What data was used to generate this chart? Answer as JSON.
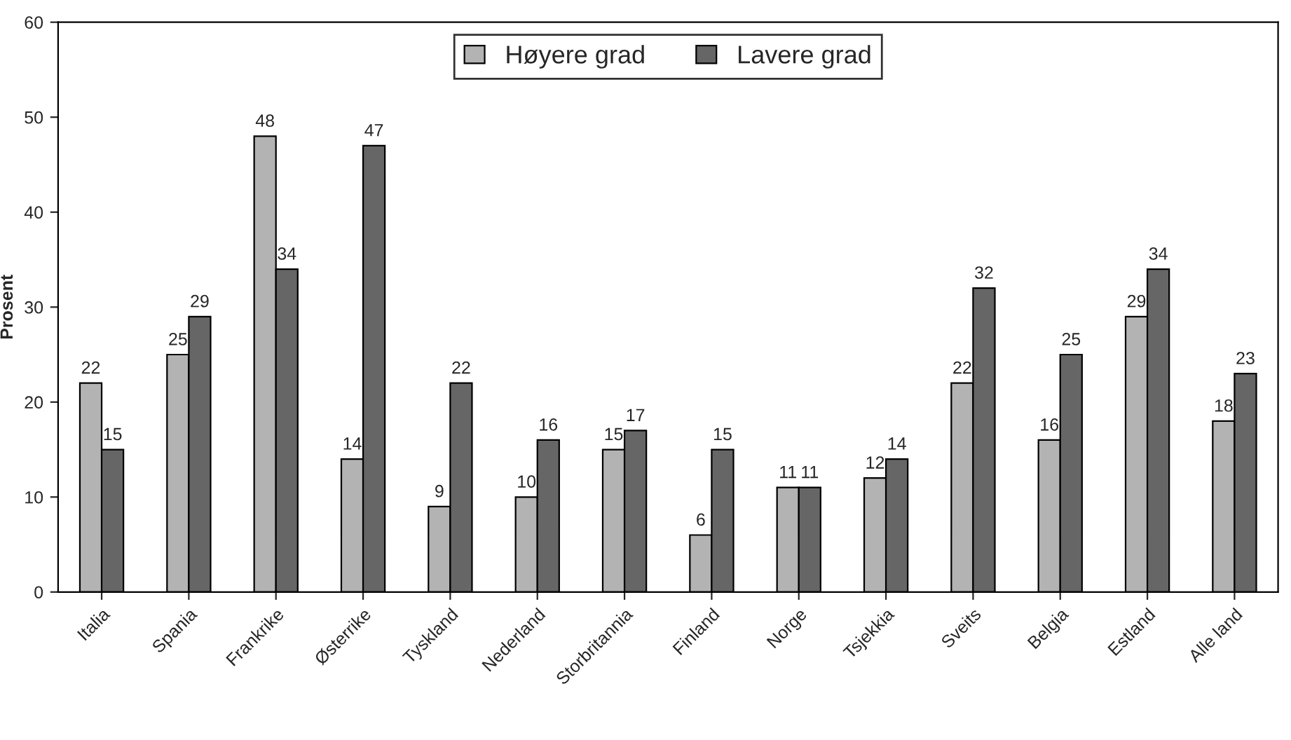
{
  "chart_data": {
    "type": "bar",
    "ylabel": "Prosent",
    "categories": [
      "Italia",
      "Spania",
      "Frankrike",
      "Østerrike",
      "Tyskland",
      "Nederland",
      "Storbritannia",
      "Finland",
      "Norge",
      "Tsjekkia",
      "Sveits",
      "Belgia",
      "Estland",
      "Alle land"
    ],
    "series": [
      {
        "name": "Høyere grad",
        "color": "#b3b3b3",
        "values": [
          22,
          25,
          48,
          14,
          9,
          10,
          15,
          6,
          11,
          12,
          22,
          16,
          29,
          18
        ]
      },
      {
        "name": "Lavere grad",
        "color": "#666666",
        "values": [
          15,
          29,
          34,
          47,
          22,
          16,
          17,
          15,
          11,
          14,
          32,
          25,
          34,
          23
        ]
      }
    ],
    "ylim": [
      0,
      60
    ],
    "yticks": [
      0,
      10,
      20,
      30,
      40,
      50,
      60
    ],
    "grid": false,
    "legend": "top",
    "data_labels": true
  }
}
